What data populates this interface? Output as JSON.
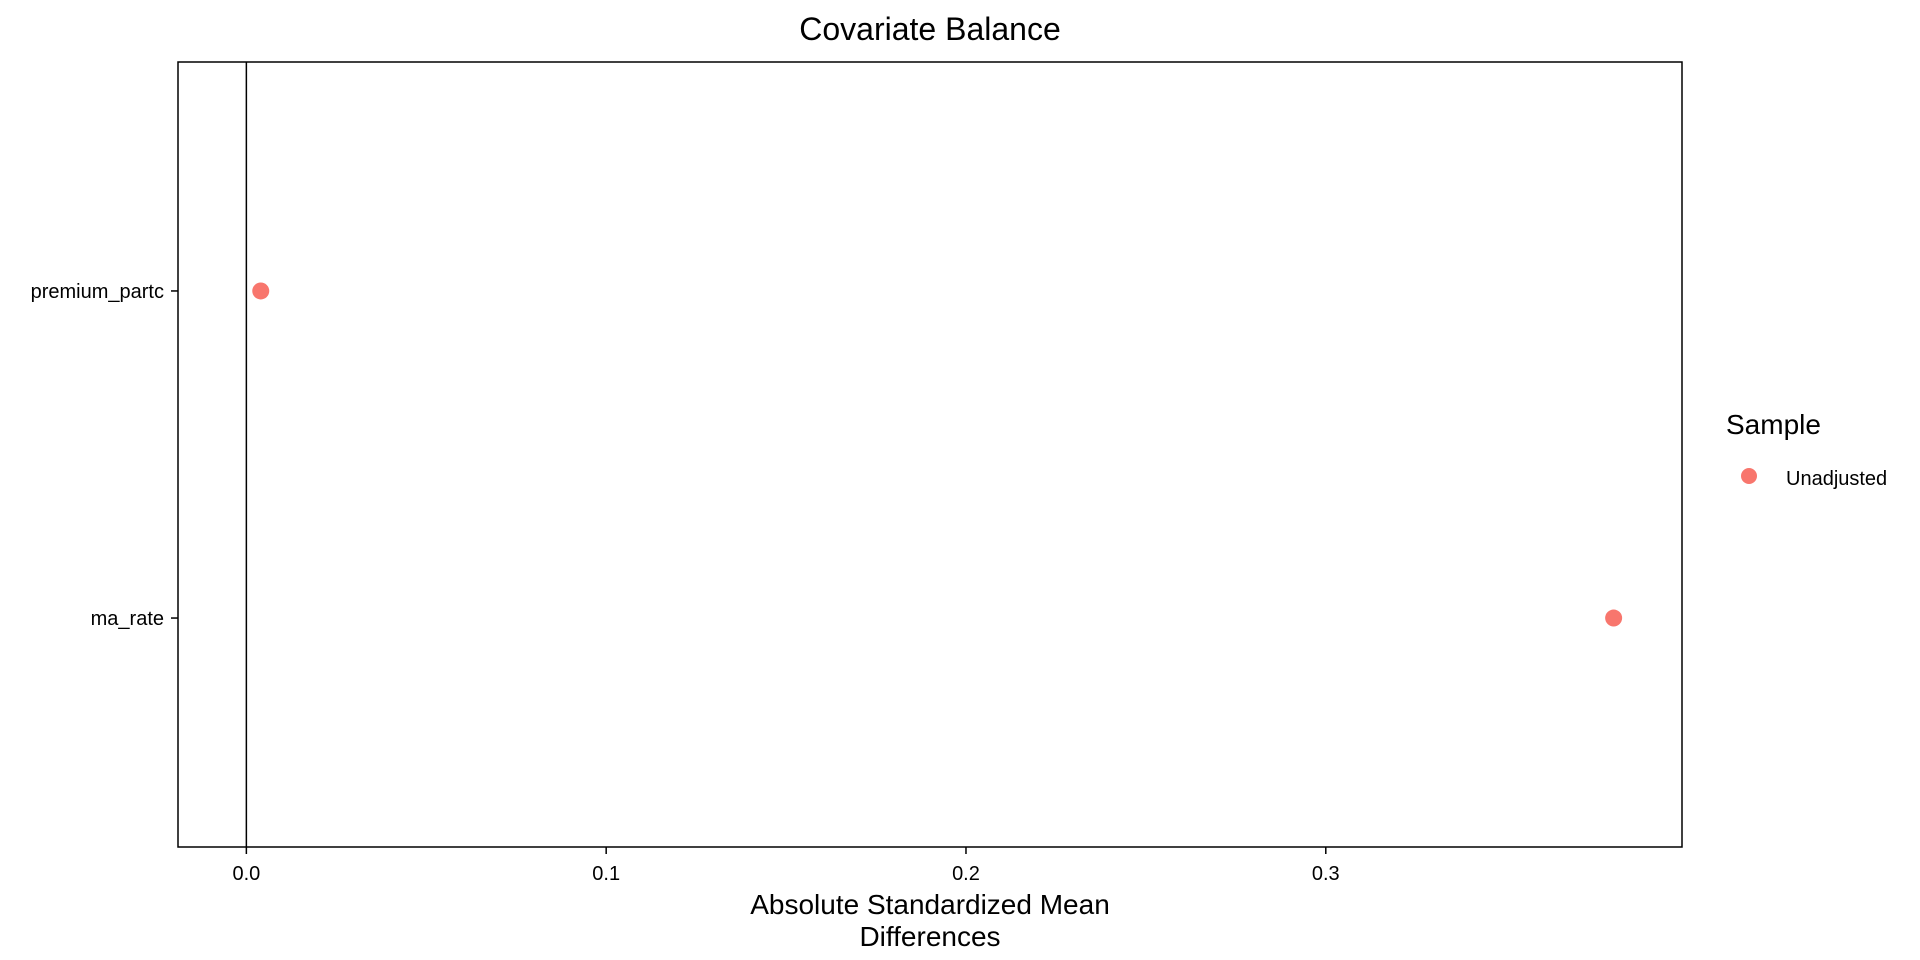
{
  "chart_data": {
    "type": "scatter",
    "title": "Covariate Balance",
    "xlabel": [
      "Absolute Standardized Mean",
      "Differences"
    ],
    "ylabel": "",
    "categories": [
      "premium_partc",
      "ma_rate"
    ],
    "xlim": [
      -0.019,
      0.399
    ],
    "x_ticks": [
      0.0,
      0.1,
      0.2,
      0.3
    ],
    "x_tick_labels": [
      "0.0",
      "0.1",
      "0.2",
      "0.3"
    ],
    "reference_line_x": 0,
    "grid": false,
    "series": [
      {
        "name": "Unadjusted",
        "color": "#F8766D",
        "points": [
          {
            "category": "premium_partc",
            "x": 0.004
          },
          {
            "category": "ma_rate",
            "x": 0.38
          }
        ]
      }
    ],
    "legend": {
      "title": "Sample",
      "placement": "right",
      "entries": [
        "Unadjusted"
      ]
    }
  }
}
